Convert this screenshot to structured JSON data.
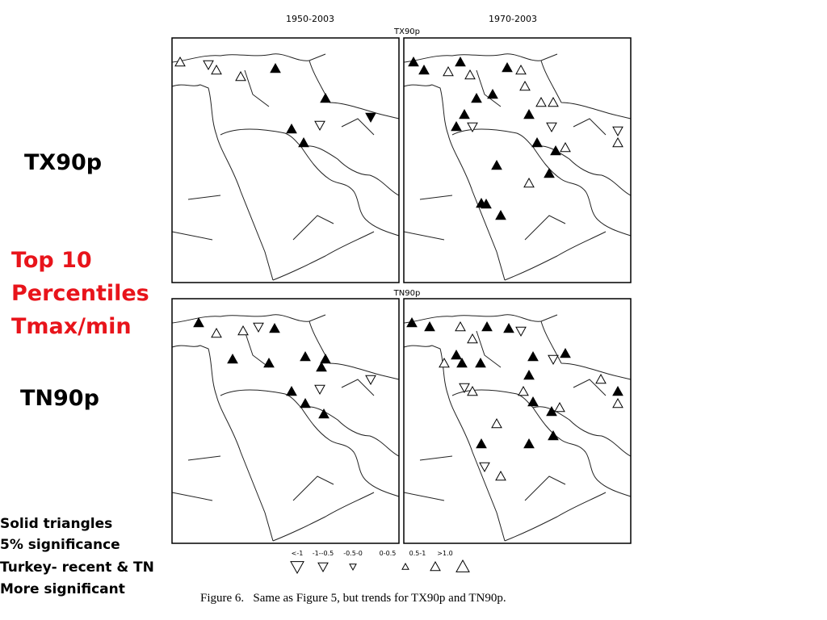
{
  "slide": {
    "labels": {
      "tx": "TX90p",
      "top": [
        "Top 10",
        "Percentiles",
        "Tmax/min"
      ],
      "tn": "TN90p"
    },
    "notes": [
      "Solid triangles",
      "5% significance",
      "Turkey- recent & TN",
      "More significant"
    ]
  },
  "figure": {
    "periods": [
      "1950-2003",
      "1970-2003"
    ],
    "rows": [
      "TX90p",
      "TN90p"
    ],
    "legend": [
      "<-1",
      "-1--0.5",
      "-0.5-0",
      "0-0.5",
      "0.5-1",
      ">1.0"
    ],
    "caption": "Figure 6.   Same as Figure 5, but trends for TX90p and TN90p."
  }
}
